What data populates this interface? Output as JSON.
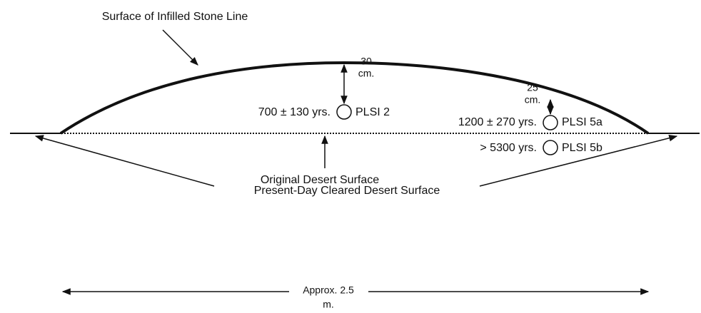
{
  "title": "Surface of Infilled Stone Line",
  "depth_labels": [
    {
      "lines": [
        "30",
        "cm."
      ]
    },
    {
      "lines": [
        "25",
        "cm."
      ]
    }
  ],
  "samples": [
    {
      "age": "700 ± 130 yrs.",
      "name": "PLSI 2"
    },
    {
      "age": "1200 ± 270 yrs.",
      "name": "PLSI 5a"
    },
    {
      "age": "> 5300 yrs.",
      "name": "PLSI 5b"
    }
  ],
  "original_surface": "Original Desert Surface",
  "cleared_surface": "Present-Day Cleared Desert Surface",
  "scale": {
    "lines": [
      "Approx. 2.5",
      "m."
    ]
  }
}
